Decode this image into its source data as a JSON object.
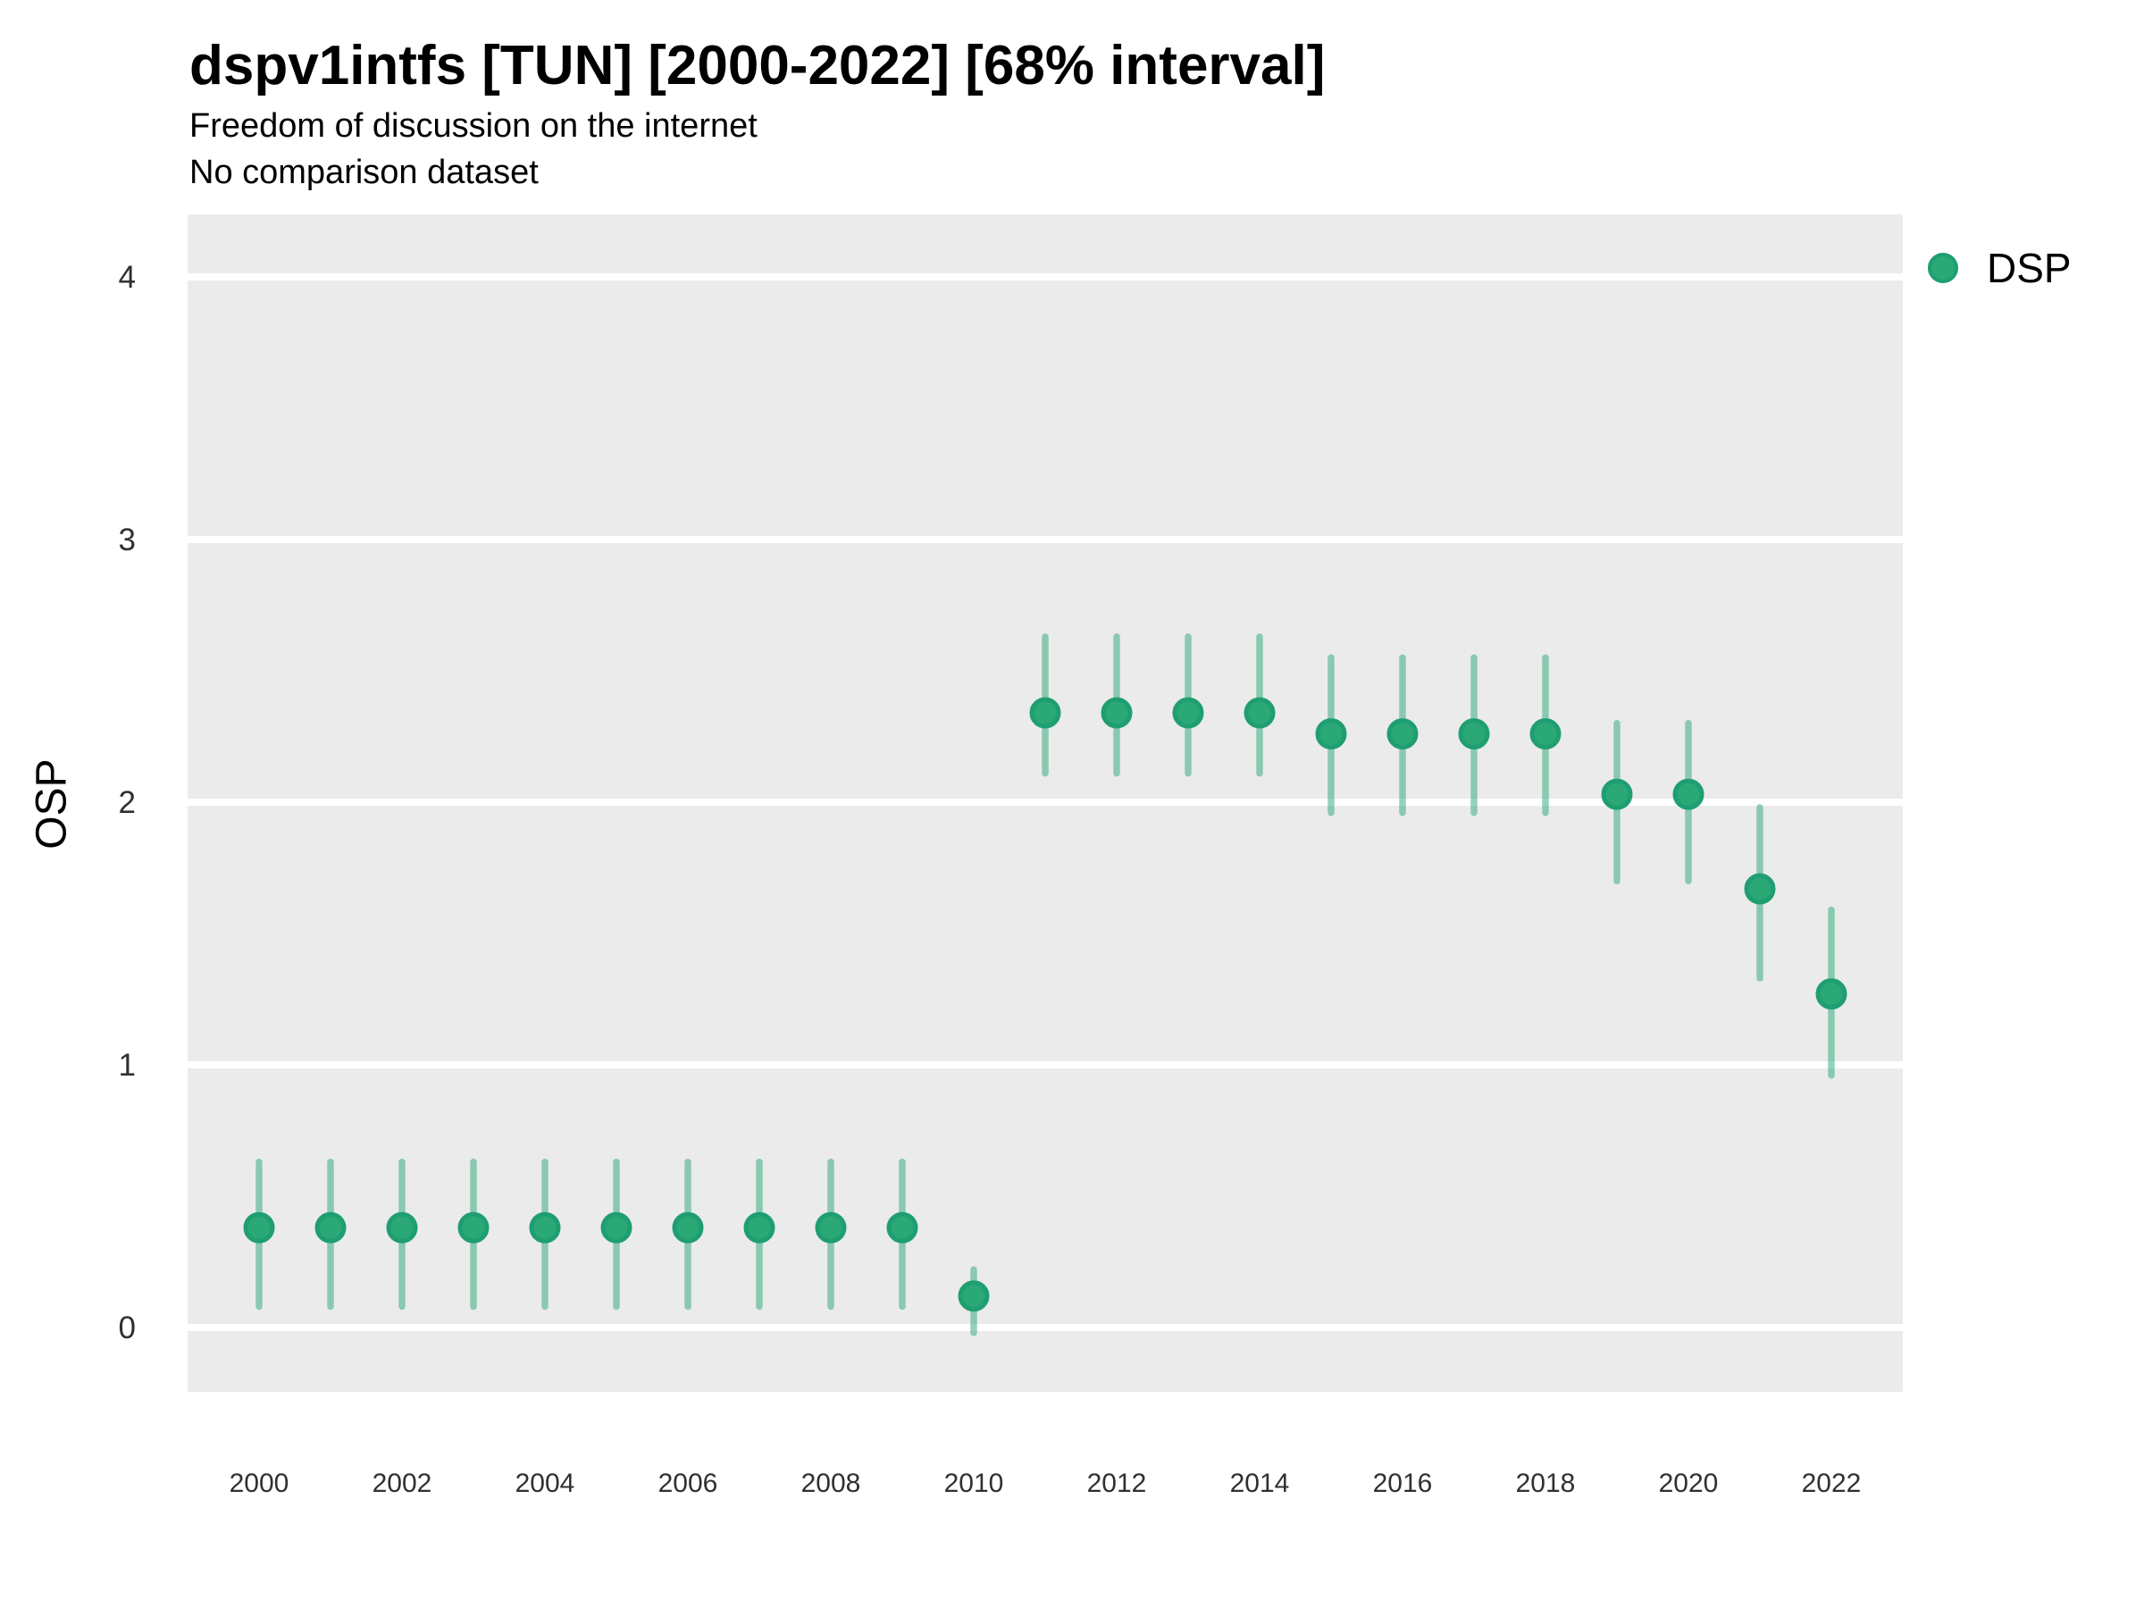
{
  "header": {
    "title": "dspv1intfs [TUN] [2000-2022] [68% interval]",
    "subtitle1": "Freedom of discussion on the internet",
    "subtitle2": "No comparison dataset"
  },
  "legend": {
    "label": "DSP"
  },
  "colors": {
    "point_fill": "#2aa876",
    "point_stroke": "#1f9e71",
    "interval_color": "#2aa876",
    "interval_opacity": 0.5,
    "panel_bg": "#ebebeb",
    "grid_line": "#ffffff",
    "tick_text": "#303030"
  },
  "chart_data": {
    "type": "scatter",
    "title": "dspv1intfs [TUN] [2000-2022] [68% interval]",
    "subtitle": "Freedom of discussion on the internet",
    "note": "No comparison dataset",
    "xlabel": "",
    "ylabel": "OSP",
    "interval_label": "68% interval",
    "country": "TUN",
    "grid": "major-horizontal",
    "legend_position": "right",
    "xlim": [
      1999,
      2023
    ],
    "ylim": [
      -0.245,
      4.238
    ],
    "x_ticks": [
      2000,
      2002,
      2004,
      2006,
      2008,
      2010,
      2012,
      2014,
      2016,
      2018,
      2020,
      2022
    ],
    "y_ticks": [
      0,
      1,
      2,
      3,
      4
    ],
    "series": [
      {
        "name": "DSP",
        "points": [
          {
            "year": 2000,
            "est": 0.38,
            "lo": 0.08,
            "hi": 0.63
          },
          {
            "year": 2001,
            "est": 0.38,
            "lo": 0.08,
            "hi": 0.63
          },
          {
            "year": 2002,
            "est": 0.38,
            "lo": 0.08,
            "hi": 0.63
          },
          {
            "year": 2003,
            "est": 0.38,
            "lo": 0.08,
            "hi": 0.63
          },
          {
            "year": 2004,
            "est": 0.38,
            "lo": 0.08,
            "hi": 0.63
          },
          {
            "year": 2005,
            "est": 0.38,
            "lo": 0.08,
            "hi": 0.63
          },
          {
            "year": 2006,
            "est": 0.38,
            "lo": 0.08,
            "hi": 0.63
          },
          {
            "year": 2007,
            "est": 0.38,
            "lo": 0.08,
            "hi": 0.63
          },
          {
            "year": 2008,
            "est": 0.38,
            "lo": 0.08,
            "hi": 0.63
          },
          {
            "year": 2009,
            "est": 0.38,
            "lo": 0.08,
            "hi": 0.63
          },
          {
            "year": 2010,
            "est": 0.12,
            "lo": -0.02,
            "hi": 0.22
          },
          {
            "year": 2011,
            "est": 2.34,
            "lo": 2.11,
            "hi": 2.63
          },
          {
            "year": 2012,
            "est": 2.34,
            "lo": 2.11,
            "hi": 2.63
          },
          {
            "year": 2013,
            "est": 2.34,
            "lo": 2.11,
            "hi": 2.63
          },
          {
            "year": 2014,
            "est": 2.34,
            "lo": 2.11,
            "hi": 2.63
          },
          {
            "year": 2015,
            "est": 2.26,
            "lo": 1.96,
            "hi": 2.55
          },
          {
            "year": 2016,
            "est": 2.26,
            "lo": 1.96,
            "hi": 2.55
          },
          {
            "year": 2017,
            "est": 2.26,
            "lo": 1.96,
            "hi": 2.55
          },
          {
            "year": 2018,
            "est": 2.26,
            "lo": 1.96,
            "hi": 2.55
          },
          {
            "year": 2019,
            "est": 2.03,
            "lo": 1.7,
            "hi": 2.3
          },
          {
            "year": 2020,
            "est": 2.03,
            "lo": 1.7,
            "hi": 2.3
          },
          {
            "year": 2021,
            "est": 1.67,
            "lo": 1.33,
            "hi": 1.98
          },
          {
            "year": 2022,
            "est": 1.27,
            "lo": 0.96,
            "hi": 1.59
          }
        ]
      }
    ]
  }
}
